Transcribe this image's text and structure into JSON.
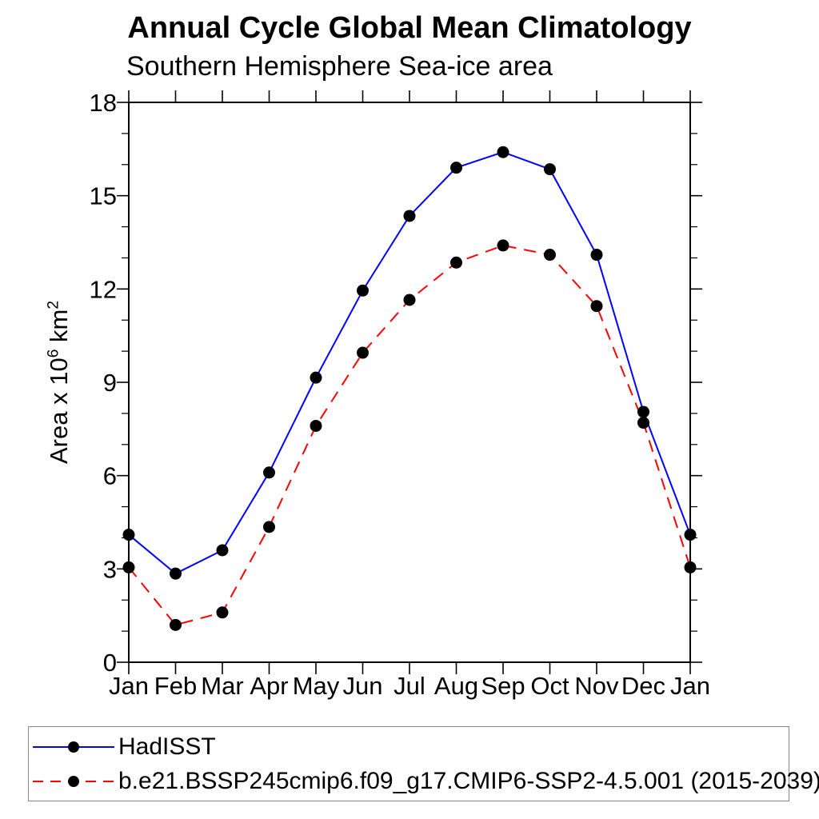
{
  "header": {
    "title": "Annual Cycle Global Mean Climatology",
    "subtitle": "Southern Hemisphere Sea-ice area"
  },
  "y_axis": {
    "prefix": "Area x 10",
    "sup1": "6",
    "mid": " km",
    "sup2": "2"
  },
  "legend": {
    "items": [
      {
        "label": "HadISST",
        "color": "#0000ff",
        "style": "solid",
        "marker": "filled-circle"
      },
      {
        "label": "b.e21.BSSP245cmip6.f09_g17.CMIP6-SSP2-4.5.001 (2015-2039)",
        "color": "#ff0000",
        "style": "dashed",
        "marker": "filled-circle"
      }
    ]
  },
  "chart_data": {
    "type": "line",
    "title": "Annual Cycle Global Mean Climatology",
    "subtitle": "Southern Hemisphere Sea-ice area",
    "xlabel": "",
    "ylabel": "Area x 10^6 km^2",
    "categories": [
      "Jan",
      "Feb",
      "Mar",
      "Apr",
      "May",
      "Jun",
      "Jul",
      "Aug",
      "Sep",
      "Oct",
      "Nov",
      "Dec",
      "Jan"
    ],
    "series": [
      {
        "name": "HadISST",
        "color": "#0000ff",
        "line_style": "solid",
        "marker_color": "#000000",
        "values": [
          4.1,
          2.85,
          3.6,
          6.1,
          9.15,
          11.95,
          14.35,
          15.9,
          16.4,
          15.85,
          13.1,
          8.05,
          4.1
        ]
      },
      {
        "name": "b.e21.BSSP245cmip6.f09_g17.CMIP6-SSP2-4.5.001 (2015-2039)",
        "color": "#ff0000",
        "line_style": "dashed",
        "marker_color": "#000000",
        "values": [
          3.05,
          1.2,
          1.6,
          4.35,
          7.6,
          9.95,
          11.65,
          12.85,
          13.4,
          13.1,
          11.45,
          7.7,
          3.05
        ]
      }
    ],
    "ylim": [
      0,
      18
    ],
    "ytick_major": [
      0,
      3,
      6,
      9,
      12,
      15,
      18
    ],
    "ytick_minor_step": 1,
    "grid": false,
    "legend_position": "bottom-left-box"
  }
}
